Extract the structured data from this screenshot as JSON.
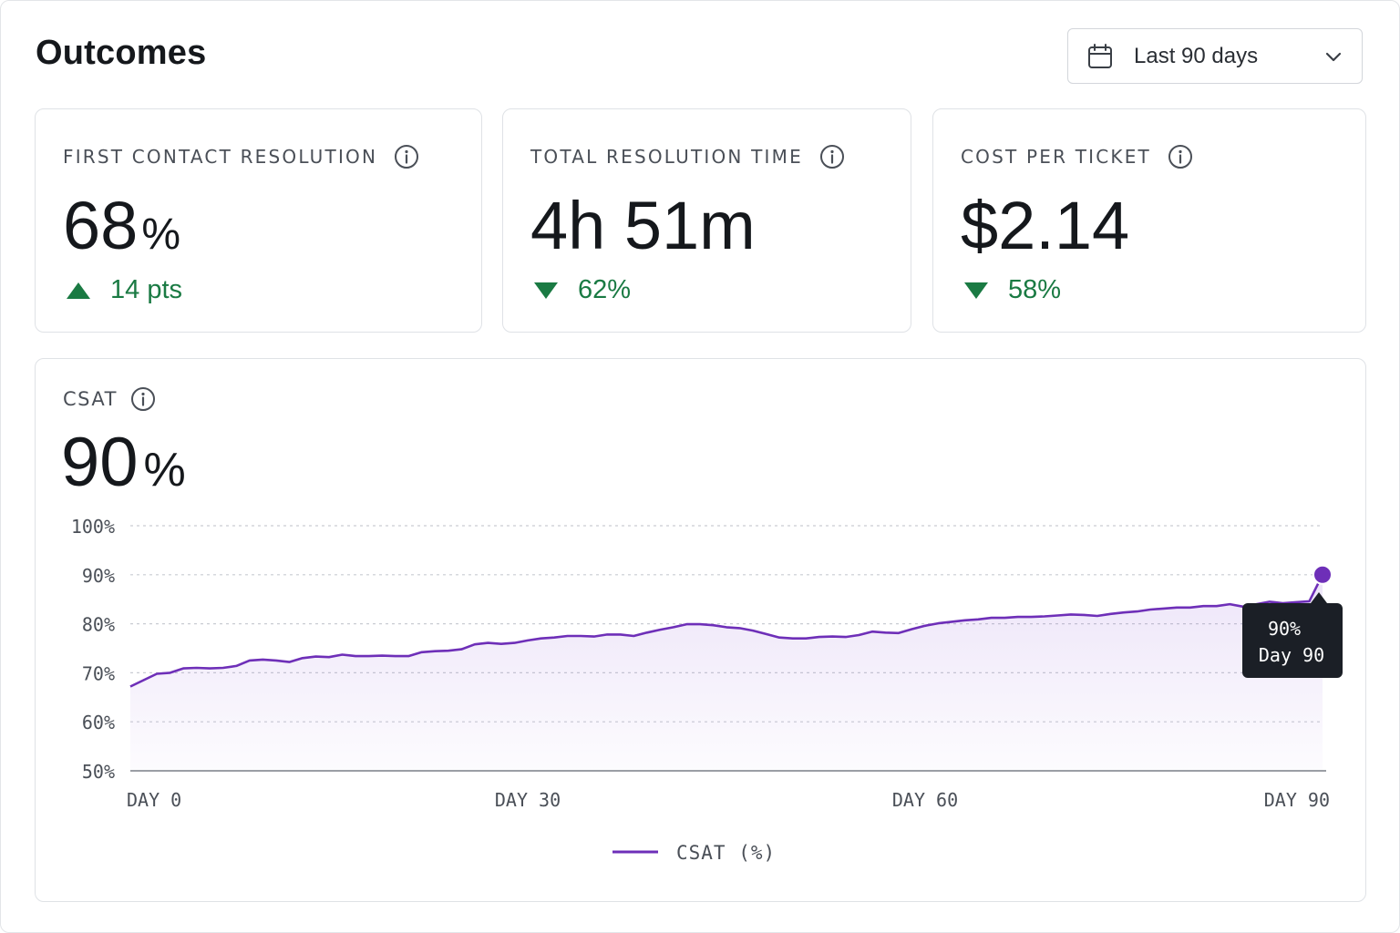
{
  "header": {
    "title": "Outcomes",
    "range_select": {
      "icon": "calendar-icon",
      "value": "Last 90 days",
      "chevron": "chevron-down-icon"
    }
  },
  "kpis": [
    {
      "label": "FIRST CONTACT RESOLUTION",
      "value": "68",
      "unit": "%",
      "delta": "14 pts",
      "direction": "up",
      "delta_color": "#1a7a43"
    },
    {
      "label": "TOTAL RESOLUTION TIME",
      "value": "4h 51m",
      "unit": "",
      "delta": "62%",
      "direction": "down",
      "delta_color": "#1a7a43"
    },
    {
      "label": "COST PER TICKET",
      "value": "$2.14",
      "unit": "",
      "delta": "58%",
      "direction": "down",
      "delta_color": "#1a7a43"
    }
  ],
  "csat": {
    "label": "CSAT",
    "value": "90",
    "unit": "%",
    "tooltip": {
      "line1": "90%",
      "line2": "Day 90"
    }
  },
  "chart_data": {
    "type": "area",
    "x": [
      0,
      1,
      2,
      3,
      4,
      5,
      6,
      7,
      8,
      9,
      10,
      11,
      12,
      13,
      14,
      15,
      16,
      17,
      18,
      19,
      20,
      21,
      22,
      23,
      24,
      25,
      26,
      27,
      28,
      29,
      30,
      31,
      32,
      33,
      34,
      35,
      36,
      37,
      38,
      39,
      40,
      41,
      42,
      43,
      44,
      45,
      46,
      47,
      48,
      49,
      50,
      51,
      52,
      53,
      54,
      55,
      56,
      57,
      58,
      59,
      60,
      61,
      62,
      63,
      64,
      65,
      66,
      67,
      68,
      69,
      70,
      71,
      72,
      73,
      74,
      75,
      76,
      77,
      78,
      79,
      80,
      81,
      82,
      83,
      84,
      85,
      86,
      87,
      88,
      89,
      90
    ],
    "series": [
      {
        "name": "CSAT (%)",
        "color": "#6e2fb8",
        "values": [
          67.2,
          68.5,
          69.8,
          70.0,
          70.9,
          71.0,
          70.9,
          71.0,
          71.4,
          72.5,
          72.7,
          72.5,
          72.2,
          73.0,
          73.3,
          73.2,
          73.7,
          73.4,
          73.4,
          73.5,
          73.4,
          73.4,
          74.2,
          74.4,
          74.5,
          74.8,
          75.8,
          76.1,
          75.9,
          76.1,
          76.6,
          77.0,
          77.2,
          77.5,
          77.5,
          77.4,
          77.8,
          77.8,
          77.5,
          78.2,
          78.8,
          79.3,
          79.9,
          79.9,
          79.7,
          79.3,
          79.1,
          78.6,
          77.9,
          77.2,
          77.0,
          77.0,
          77.3,
          77.4,
          77.3,
          77.7,
          78.4,
          78.2,
          78.1,
          78.9,
          79.6,
          80.1,
          80.4,
          80.7,
          80.9,
          81.2,
          81.2,
          81.4,
          81.4,
          81.5,
          81.7,
          81.9,
          81.8,
          81.6,
          82.0,
          82.3,
          82.5,
          82.9,
          83.1,
          83.3,
          83.3,
          83.6,
          83.6,
          84.0,
          83.5,
          84.0,
          84.5,
          84.2,
          84.4,
          84.6,
          90.0
        ]
      }
    ],
    "xlabels": [
      "DAY 0",
      "DAY 30",
      "DAY 60",
      "DAY 90"
    ],
    "xlabel_values": [
      0,
      30,
      60,
      90
    ],
    "yticks": [
      50,
      60,
      70,
      80,
      90,
      100
    ],
    "ytick_labels": [
      "50%",
      "60%",
      "70%",
      "80%",
      "90%",
      "100%"
    ],
    "ylim": [
      50,
      100
    ],
    "xlim": [
      0,
      90
    ],
    "grid": true,
    "legend": "bottom-center"
  }
}
